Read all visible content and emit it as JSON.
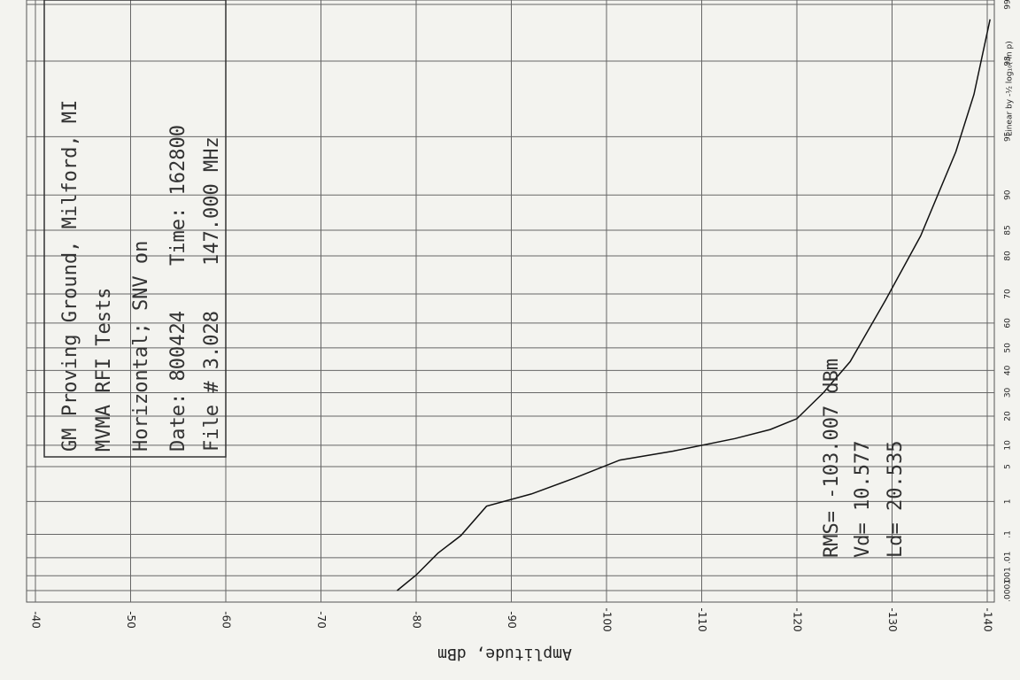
{
  "chart_data": {
    "type": "line",
    "x_label": "Amplitude, dBm",
    "y_label": "Linear by -½ log₁₀(-ln p)",
    "annotations": [
      "GM Proving Ground, Milford, MI",
      "MVMA RFI Tests",
      "Horizontal; SNV on",
      "Date: 800424",
      "Time: 162800",
      "File #  3.028",
      "147.000 MHz"
    ],
    "stats": [
      "RMS= -103.007  dBm",
      "Vd=  10.577",
      "Ld=  20.535"
    ],
    "x": [
      -78.0,
      -80.0,
      -82.3,
      -84.7,
      -87.4,
      -92.1,
      -96.7,
      -101.4,
      -107.0,
      -113.5,
      -117.2,
      -120.0,
      -122.8,
      -125.6,
      -129.3,
      -133.0,
      -136.7,
      -138.6,
      -140.3
    ],
    "values": [
      0.0001,
      0.0011,
      0.0165,
      0.09,
      0.76,
      1.5,
      3.2,
      6.3,
      8.4,
      12,
      15,
      19,
      30,
      44,
      68,
      84,
      94,
      97,
      98.8
    ],
    "color": "#111111",
    "xlim": [
      -40,
      -140
    ],
    "xticks": [
      -40,
      -50,
      -60,
      -70,
      -80,
      -90,
      -100,
      -110,
      -120,
      -130,
      -140
    ],
    "ylim": [
      0.0001,
      99
    ],
    "yticks": [
      {
        "value": 0.0001,
        "label": ".0001"
      },
      {
        "value": 0.001,
        "label": ".001"
      },
      {
        "value": 0.01,
        "label": ".01"
      },
      {
        "value": 0.1,
        "label": ".1"
      },
      1,
      5,
      10,
      20,
      30,
      40,
      50,
      60,
      70,
      80,
      85,
      90,
      95,
      98,
      99
    ],
    "grid": true
  }
}
